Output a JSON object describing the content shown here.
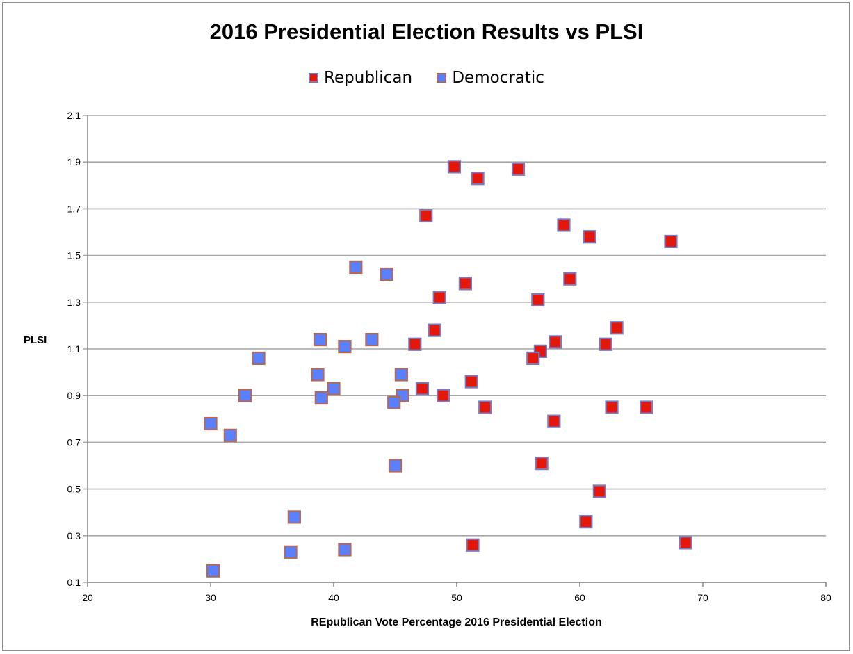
{
  "chart_data": {
    "type": "scatter",
    "title": "2016 Presidential Election Results vs PLSI",
    "xlabel": "REpublican Vote Percentage 2016 Presidential Election",
    "ylabel": "PLSI",
    "xlim": [
      20,
      80
    ],
    "ylim": [
      0.1,
      2.1
    ],
    "x_ticks": [
      "20",
      "30",
      "40",
      "50",
      "60",
      "70",
      "80"
    ],
    "y_ticks": [
      "0.1",
      "0.3",
      "0.5",
      "0.7",
      "0.9",
      "1.1",
      "1.3",
      "1.5",
      "1.7",
      "1.9",
      "2.1"
    ],
    "grid": "horizontal",
    "legend_position": "top",
    "series": [
      {
        "name": "Republican",
        "color": "#e3170a",
        "border": "#7a7ac0",
        "points": [
          [
            49.8,
            1.88
          ],
          [
            51.7,
            1.83
          ],
          [
            55.0,
            1.87
          ],
          [
            47.5,
            1.67
          ],
          [
            58.7,
            1.63
          ],
          [
            60.8,
            1.58
          ],
          [
            67.4,
            1.56
          ],
          [
            59.2,
            1.4
          ],
          [
            50.7,
            1.38
          ],
          [
            48.6,
            1.32
          ],
          [
            56.6,
            1.31
          ],
          [
            48.2,
            1.18
          ],
          [
            63.0,
            1.19
          ],
          [
            46.6,
            1.12
          ],
          [
            58.0,
            1.13
          ],
          [
            62.1,
            1.12
          ],
          [
            56.8,
            1.09
          ],
          [
            56.2,
            1.06
          ],
          [
            51.2,
            0.96
          ],
          [
            47.2,
            0.93
          ],
          [
            48.9,
            0.9
          ],
          [
            52.3,
            0.85
          ],
          [
            62.6,
            0.85
          ],
          [
            65.4,
            0.85
          ],
          [
            57.9,
            0.79
          ],
          [
            56.9,
            0.61
          ],
          [
            61.6,
            0.49
          ],
          [
            60.5,
            0.36
          ],
          [
            51.3,
            0.26
          ],
          [
            68.6,
            0.27
          ]
        ]
      },
      {
        "name": "Democratic",
        "color": "#5b80ff",
        "border": "#b06a5a",
        "points": [
          [
            41.8,
            1.45
          ],
          [
            44.3,
            1.42
          ],
          [
            38.9,
            1.14
          ],
          [
            40.9,
            1.11
          ],
          [
            43.1,
            1.14
          ],
          [
            33.9,
            1.06
          ],
          [
            38.7,
            0.99
          ],
          [
            40.0,
            0.93
          ],
          [
            45.5,
            0.99
          ],
          [
            39.0,
            0.89
          ],
          [
            32.8,
            0.9
          ],
          [
            45.6,
            0.9
          ],
          [
            44.9,
            0.87
          ],
          [
            30.0,
            0.78
          ],
          [
            31.6,
            0.73
          ],
          [
            45.0,
            0.6
          ],
          [
            36.8,
            0.38
          ],
          [
            36.5,
            0.23
          ],
          [
            40.9,
            0.24
          ],
          [
            30.2,
            0.15
          ]
        ]
      }
    ]
  }
}
